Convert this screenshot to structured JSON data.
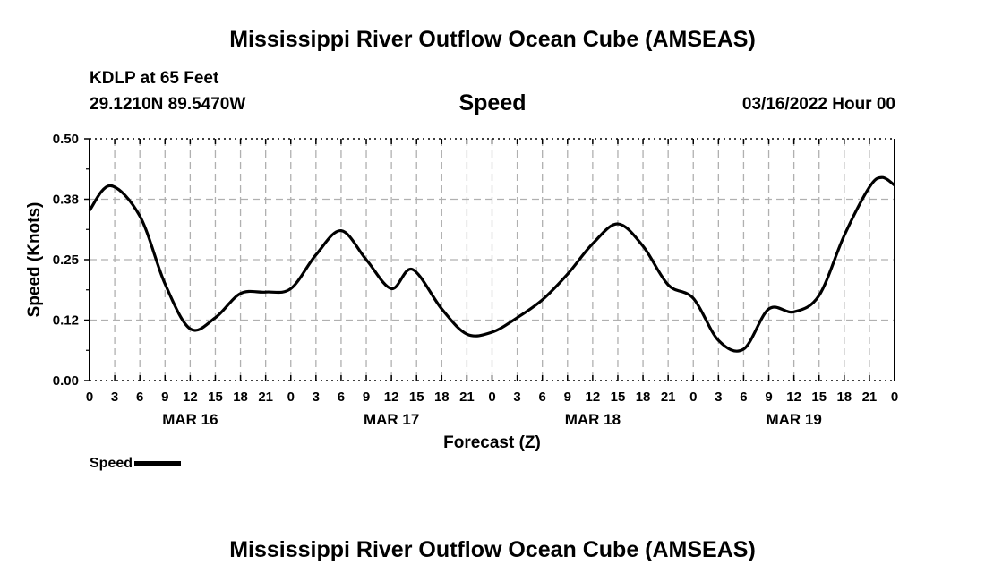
{
  "header": {
    "title": "Mississippi River Outflow Ocean Cube (AMSEAS)",
    "station": "KDLP at 65 Feet",
    "coords": "29.1210N  89.5470W",
    "variable": "Speed",
    "date": "03/16/2022 Hour 00",
    "footer_title": "Mississippi River Outflow Ocean Cube (AMSEAS)"
  },
  "chart_data": {
    "type": "line",
    "title": "Speed",
    "xlabel": "Forecast (Z)",
    "ylabel": "Speed (Knots)",
    "ylim": [
      0,
      0.5
    ],
    "xlim": [
      0,
      96
    ],
    "grid": true,
    "yticks": [
      0,
      0.125,
      0.25,
      0.375,
      0.5
    ],
    "ytick_labels": [
      "0.00",
      "0.12",
      "0.25",
      "0.38",
      "0.50"
    ],
    "xtick_labels": [
      "0",
      "3",
      "6",
      "9",
      "12",
      "15",
      "18",
      "21",
      "0",
      "3",
      "6",
      "9",
      "12",
      "15",
      "18",
      "21",
      "0",
      "3",
      "6",
      "9",
      "12",
      "15",
      "18",
      "21",
      "0",
      "3",
      "6",
      "9",
      "12",
      "15",
      "18",
      "21",
      "0"
    ],
    "day_labels": [
      {
        "hour": 12,
        "label": "MAR 16"
      },
      {
        "hour": 36,
        "label": "MAR 17"
      },
      {
        "hour": 60,
        "label": "MAR 18"
      },
      {
        "hour": 84,
        "label": "MAR 19"
      }
    ],
    "legend": {
      "label": "Speed",
      "placement": "bottom-left"
    },
    "series": [
      {
        "name": "Speed",
        "color": "#000000",
        "x": [
          0,
          2.5,
          6,
          9,
          12,
          15,
          18,
          21,
          24,
          27,
          30,
          33,
          36,
          38.5,
          42,
          45,
          48,
          51,
          54,
          57,
          60,
          63,
          66,
          69,
          72,
          75,
          78,
          81,
          84,
          87,
          90,
          93,
          94.5,
          96
        ],
        "values": [
          0.352,
          0.403,
          0.34,
          0.2,
          0.107,
          0.13,
          0.18,
          0.183,
          0.19,
          0.26,
          0.31,
          0.25,
          0.19,
          0.23,
          0.148,
          0.096,
          0.1,
          0.13,
          0.167,
          0.22,
          0.283,
          0.324,
          0.278,
          0.198,
          0.17,
          0.083,
          0.065,
          0.148,
          0.142,
          0.176,
          0.3,
          0.4,
          0.42,
          0.404
        ]
      }
    ]
  }
}
